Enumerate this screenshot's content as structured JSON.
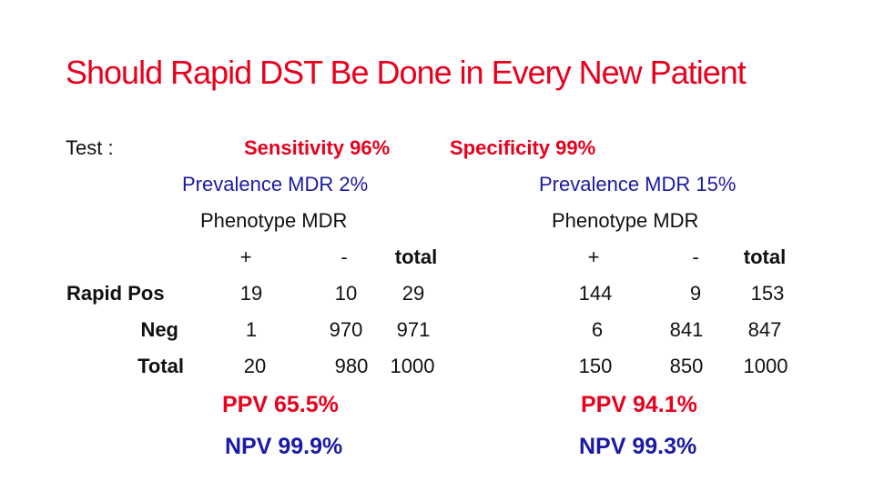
{
  "colors": {
    "title": "#e8001c",
    "red": "#e8001c",
    "blue": "#1a1aa6",
    "black": "#111111"
  },
  "title": "Should Rapid DST Be Done in Every New Patient",
  "test_label": "Test :",
  "sensitivity": "Sensitivity 96%",
  "specificity": "Specificity 99%",
  "row_labels": {
    "pos": "Rapid Pos",
    "neg": "Neg",
    "total": "Total"
  },
  "left": {
    "prevalence": "Prevalence MDR 2%",
    "phenotype": "Phenotype MDR",
    "headers": {
      "plus": "+",
      "minus": "-",
      "total": "total"
    },
    "pos": {
      "plus": "19",
      "minus": "10",
      "total": "29"
    },
    "neg": {
      "plus": "1",
      "minus": "970",
      "total": "971"
    },
    "total": {
      "plus": "20",
      "minus": "980",
      "total": "1000"
    },
    "ppv": "PPV  65.5%",
    "npv": "NPV  99.9%"
  },
  "right": {
    "prevalence": "Prevalence MDR 15%",
    "phenotype": "Phenotype MDR",
    "headers": {
      "plus": "+",
      "minus": "-",
      "total": "total"
    },
    "pos": {
      "plus": "144",
      "minus": "9",
      "total": "153"
    },
    "neg": {
      "plus": "6",
      "minus": "841",
      "total": "847"
    },
    "total": {
      "plus": "150",
      "minus": "850",
      "total": "1000"
    },
    "ppv": "PPV  94.1%",
    "npv": "NPV 99.3%"
  }
}
